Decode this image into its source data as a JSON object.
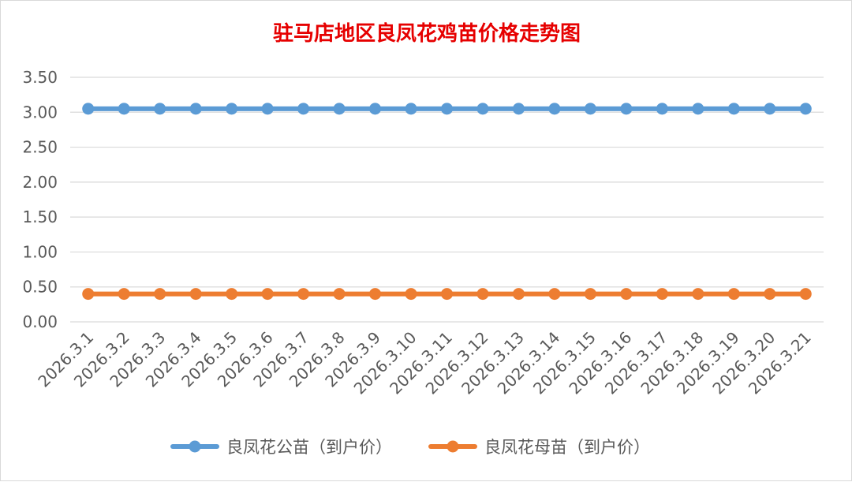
{
  "chart_data": {
    "type": "line",
    "title": "驻马店地区良凤花鸡苗价格走势图",
    "xlabel": "",
    "ylabel": "",
    "ylim": [
      0,
      3.5
    ],
    "yticks": [
      "0.00",
      "0.50",
      "1.00",
      "1.50",
      "2.00",
      "2.50",
      "3.00",
      "3.50"
    ],
    "grid": true,
    "legend_position": "bottom",
    "categories": [
      "2026.3.1",
      "2026.3.2",
      "2026.3.3",
      "2026.3.4",
      "2026.3.5",
      "2026.3.6",
      "2026.3.7",
      "2026.3.8",
      "2026.3.9",
      "2026.3.10",
      "2026.3.11",
      "2026.3.12",
      "2026.3.13",
      "2026.3.14",
      "2026.3.15",
      "2026.3.16",
      "2026.3.17",
      "2026.3.18",
      "2026.3.19",
      "2026.3.20",
      "2026.3.21"
    ],
    "series": [
      {
        "name": "良凤花公苗（到户价）",
        "color": "#5b9bd5",
        "values": [
          3.05,
          3.05,
          3.05,
          3.05,
          3.05,
          3.05,
          3.05,
          3.05,
          3.05,
          3.05,
          3.05,
          3.05,
          3.05,
          3.05,
          3.05,
          3.05,
          3.05,
          3.05,
          3.05,
          3.05,
          3.05
        ]
      },
      {
        "name": "良凤花母苗（到户价）",
        "color": "#ed7d31",
        "values": [
          0.4,
          0.4,
          0.4,
          0.4,
          0.4,
          0.4,
          0.4,
          0.4,
          0.4,
          0.4,
          0.4,
          0.4,
          0.4,
          0.4,
          0.4,
          0.4,
          0.4,
          0.4,
          0.4,
          0.4,
          0.4
        ]
      }
    ],
    "gridline_color": "#d9d9d9",
    "title_color": "#e60000",
    "tick_label_color": "#595959"
  }
}
